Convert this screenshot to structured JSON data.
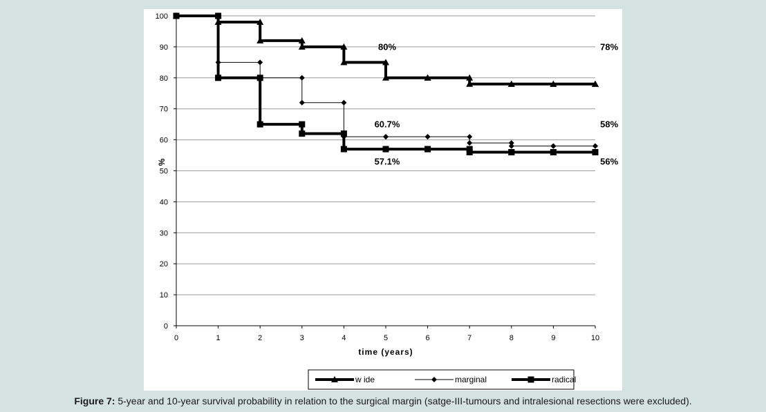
{
  "caption": {
    "label": "Figure 7:",
    "text": " 5-year and 10-year survival probability in relation to the surgical margin (satge-III-tumours and intralesional resections were excluded)."
  },
  "chart_data": {
    "type": "line",
    "step": true,
    "xlabel": "time (years)",
    "ylabel": "%",
    "xlim": [
      0,
      10
    ],
    "ylim": [
      0,
      100
    ],
    "x_ticks": [
      0,
      1,
      2,
      3,
      4,
      5,
      6,
      7,
      8,
      9,
      10
    ],
    "y_ticks": [
      0,
      10,
      20,
      30,
      40,
      50,
      60,
      70,
      80,
      90,
      100
    ],
    "grid": "horizontal",
    "legend": {
      "placement": "bottom"
    },
    "series": [
      {
        "name": "w ide",
        "marker": "triangle",
        "line": "thick",
        "color": "#000000",
        "x": [
          0,
          1,
          2,
          3,
          4,
          5,
          6,
          7,
          8,
          9,
          10
        ],
        "y": [
          100,
          98,
          92,
          90,
          85,
          80,
          80,
          78,
          78,
          78,
          78
        ]
      },
      {
        "name": "marginal",
        "marker": "diamond",
        "line": "thin",
        "color": "#000000",
        "x": [
          0,
          1,
          2,
          3,
          4,
          5,
          6,
          7,
          8,
          9,
          10
        ],
        "y": [
          100,
          85,
          80,
          72,
          61,
          61,
          61,
          59,
          58,
          58,
          58
        ]
      },
      {
        "name": "radical",
        "marker": "square",
        "line": "thick",
        "color": "#000000",
        "x": [
          0,
          1,
          2,
          3,
          4,
          5,
          6,
          7,
          8,
          9,
          10
        ],
        "y": [
          100,
          80,
          65,
          62,
          57,
          57,
          57,
          56,
          56,
          56,
          56
        ]
      }
    ],
    "annotations": [
      {
        "text": "80%",
        "x": 5,
        "y": 89
      },
      {
        "text": "78%",
        "x": 10.3,
        "y": 89
      },
      {
        "text": "60.7%",
        "x": 5,
        "y": 64
      },
      {
        "text": "58%",
        "x": 10.3,
        "y": 64
      },
      {
        "text": "57.1%",
        "x": 5,
        "y": 52
      },
      {
        "text": "56%",
        "x": 10.3,
        "y": 52
      }
    ]
  }
}
